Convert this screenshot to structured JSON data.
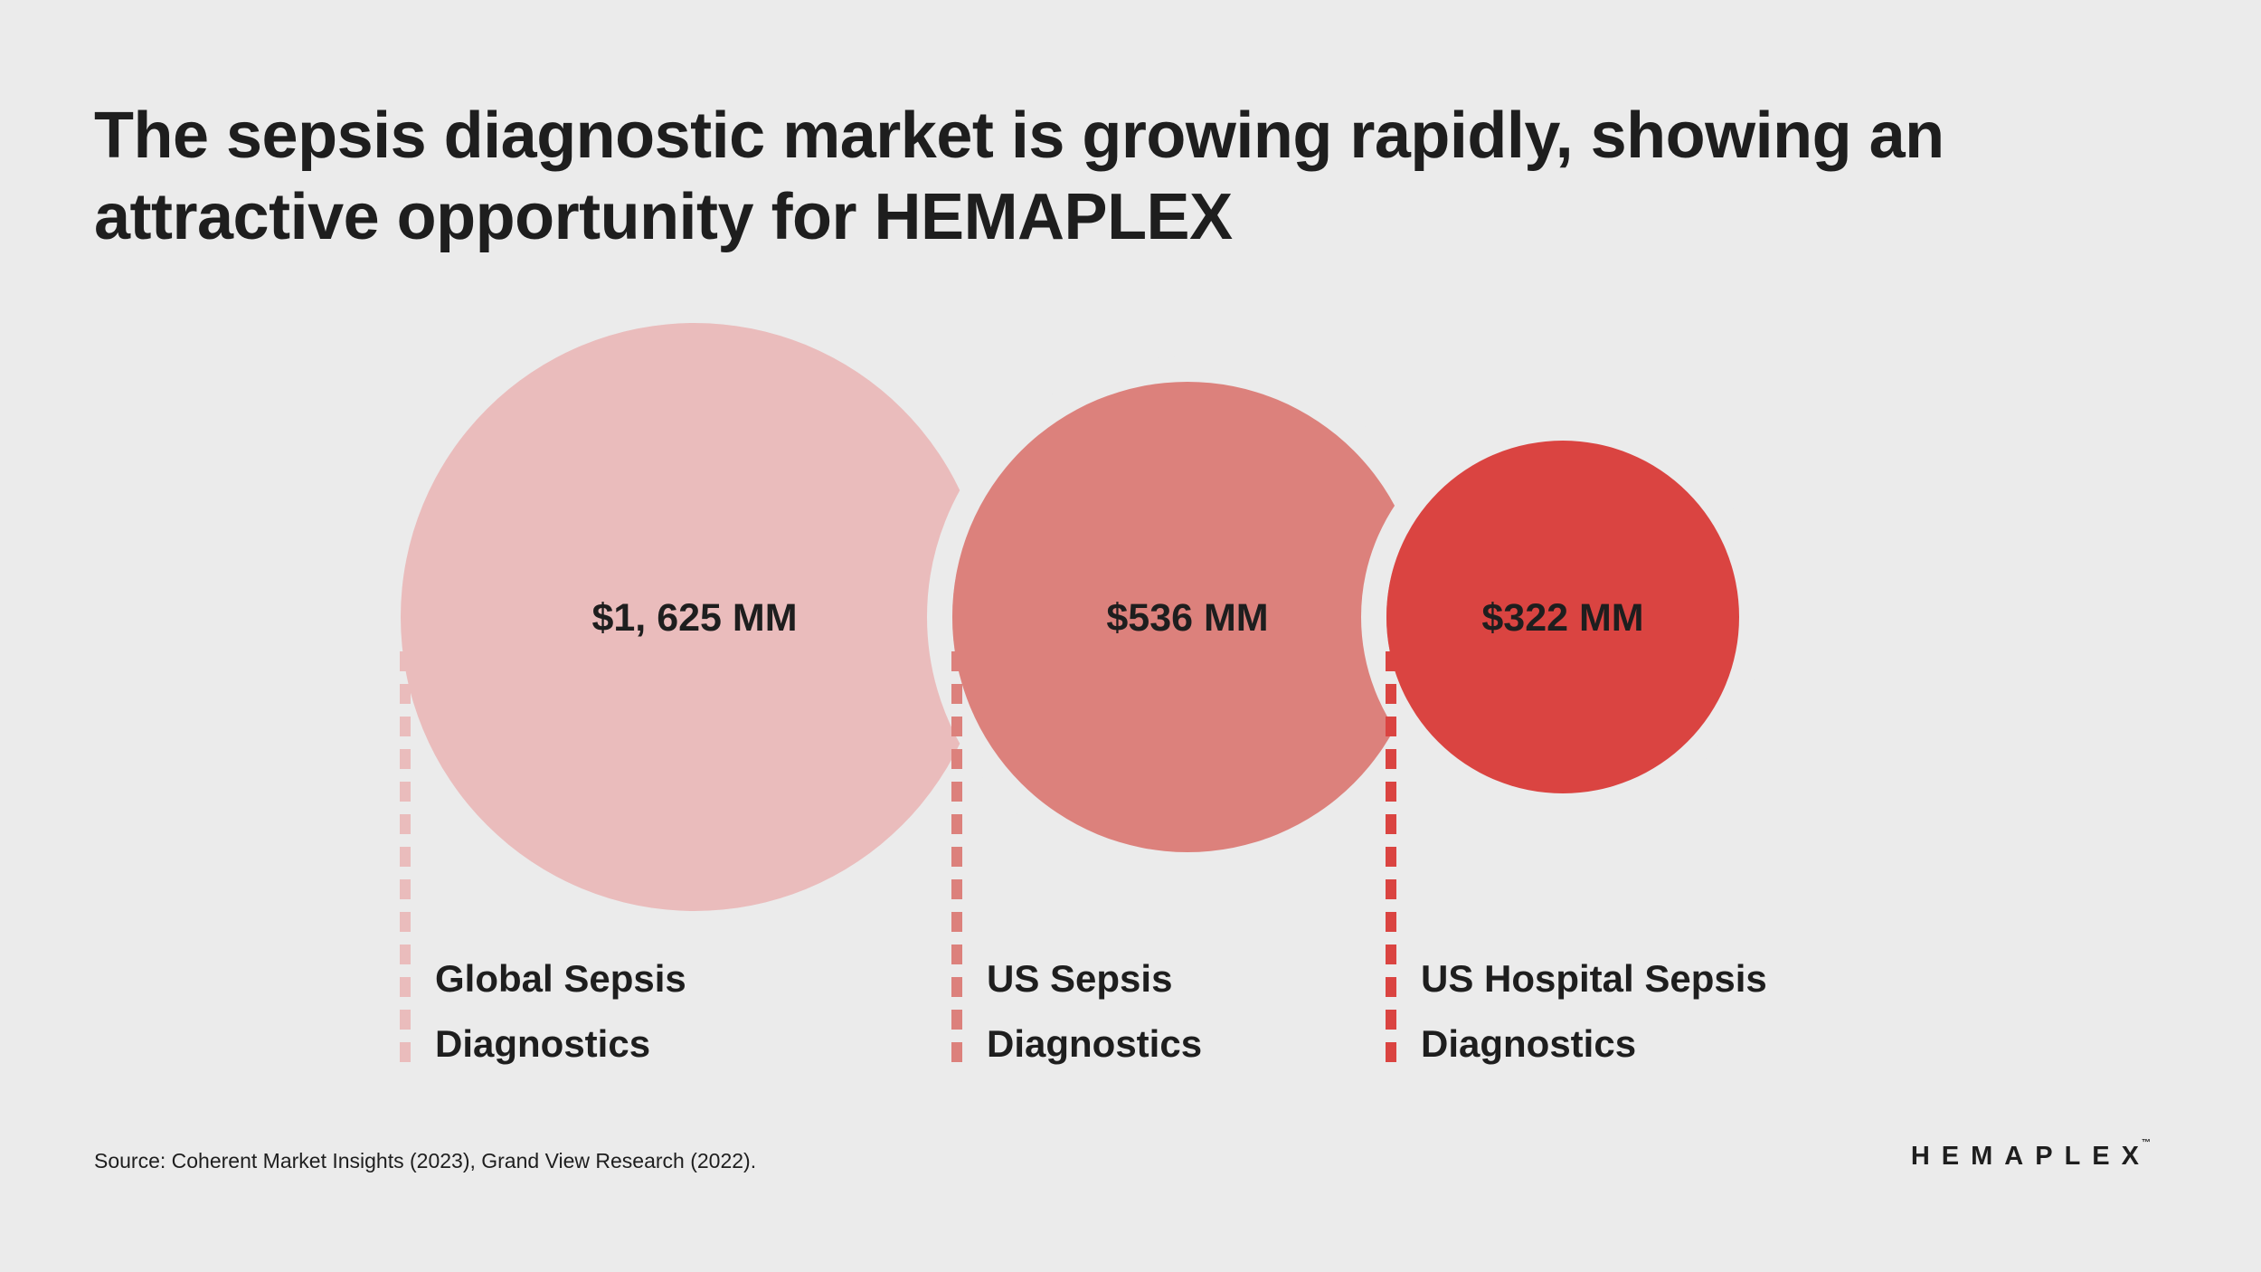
{
  "header": {
    "title": "The sepsis diagnostic market is growing rapidly, showing an attractive opportunity for HEMAPLEX"
  },
  "chart_data": {
    "type": "bubble",
    "title": "The sepsis diagnostic market is growing rapidly, showing an attractive opportunity for HEMAPLEX",
    "unit": "MM",
    "categories": [
      "Global Sepsis Diagnostics",
      "US Sepsis Diagnostics",
      "US Hospital Sepsis Diagnostics"
    ],
    "values": [
      1625,
      536,
      322
    ],
    "points": [
      {
        "value": 1625,
        "value_label": "$1, 625 MM",
        "label_lines": [
          "Global Sepsis",
          "Diagnostics"
        ],
        "color": "#eabcbc"
      },
      {
        "value": 536,
        "value_label": "$536 MM",
        "label_lines": [
          "US Sepsis",
          "Diagnostics"
        ],
        "color": "#dc817c"
      },
      {
        "value": 322,
        "value_label": "$322 MM",
        "label_lines": [
          "US Hospital Sepsis",
          "Diagnostics"
        ],
        "color": "#da4441"
      }
    ],
    "background": "#ebebeb"
  },
  "footer": {
    "source": "Source: Coherent Market Insights (2023), Grand View Research (2022).",
    "logo": "HEMAPLEX",
    "logo_tm": "™"
  }
}
